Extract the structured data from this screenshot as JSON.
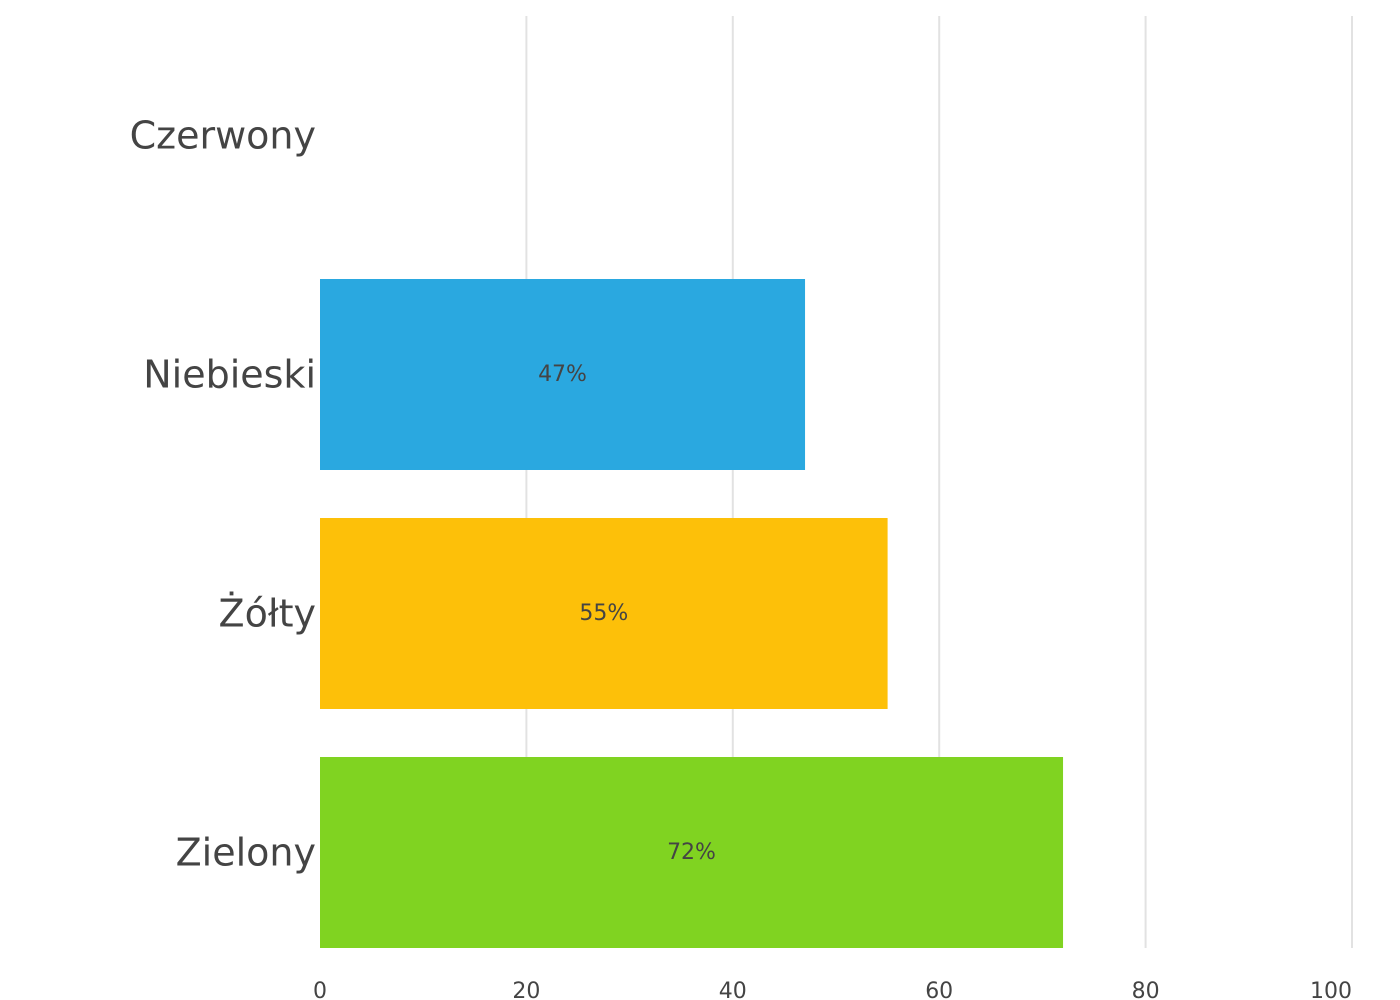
{
  "chart_data": {
    "type": "bar",
    "orientation": "horizontal",
    "categories": [
      "Czerwony",
      "Niebieski",
      "Żółty",
      "Zielony"
    ],
    "values": [
      0,
      47,
      55,
      72
    ],
    "data_labels": [
      "",
      "47%",
      "55%",
      "72%"
    ],
    "colors": [
      "#e53935",
      "#2aa8e0",
      "#fdc009",
      "#80d321"
    ],
    "xlim": [
      0,
      100
    ],
    "xticks": [
      0,
      20,
      40,
      60,
      80,
      100
    ],
    "xtick_labels": [
      "0",
      "20",
      "40",
      "60",
      "80",
      "100"
    ],
    "grid": true,
    "legend": "none"
  }
}
